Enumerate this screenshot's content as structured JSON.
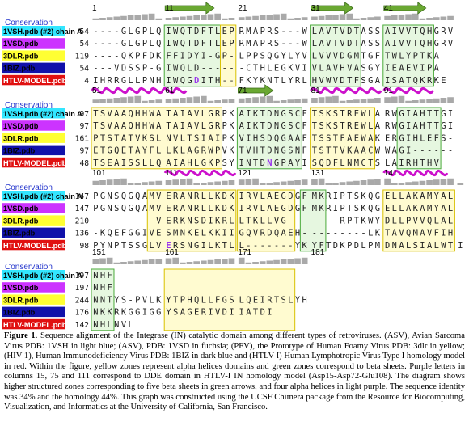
{
  "figure": {
    "conservation_label": "Conservation",
    "blocks": [
      {
        "ticks": [
          {
            "n": "1",
            "col": 0
          },
          {
            "n": "11",
            "col": 10
          },
          {
            "n": "21",
            "col": 20
          },
          {
            "n": "31",
            "col": 30
          },
          {
            "n": "41",
            "col": 40
          }
        ],
        "rows": [
          {
            "name": "1VSH.pdb (#2) chain A",
            "num": "54",
            "seq": "----GLGPLQ IWQTDFTLEP RMAPRS---W LAVTVDTASS AIVVTQHGRV"
          },
          {
            "name": "1VSD.pdb",
            "num": "54",
            "seq": "----GLGPLQ IWQTDFTLEP RMAPRS---W LAVTVDTASS AIVVTQHGRV"
          },
          {
            "name": "3DLR.pdb",
            "num": "119",
            "seq": "----QKPFD KFFIDYI-GP -LPPSQGYLY VLVVVDGMTG FTWLYPTKA"
          },
          {
            "name": "1BIZ.pdb",
            "num": "54",
            "seq": "---VDSSP-G IWQLD------ CTHLEGKV IVLAVHVASG YIEAEVIPA"
          },
          {
            "name": "HTLV-MODEL.pdb",
            "num": "4",
            "seq": "IHRRGLLPNH IWQGDITH-- FKYKNTLYR LHVWVDTFSG AISATQKRKE"
          }
        ]
      },
      {
        "ticks": [
          {
            "n": "51",
            "col": 0
          },
          {
            "n": "61",
            "col": 10
          },
          {
            "n": "71",
            "col": 20
          },
          {
            "n": "81",
            "col": 30
          },
          {
            "n": "91",
            "col": 40
          }
        ],
        "rows": [
          {
            "name": "1VSH.pdb (#2) chain A",
            "num": "97",
            "seq": "TSVAAQHHWA TAIAVLGRPK AIKTDNGSCF TSKSTREWLA RWGIAHTTGI"
          },
          {
            "name": "1VSD.pdb",
            "num": "97",
            "seq": "TSVAAQHHWA TAIAVLGRPK AIKTDNGSCF TSKSTREWLA RWGIAHTTGI"
          },
          {
            "name": "3DLR.pdb",
            "num": "161",
            "seq": "PTSTATVKSL NVLTSIAIPK VIHSDQGAAF TSSTFAEWAK ERGIHLEFS-"
          },
          {
            "name": "1BIZ.pdb",
            "num": "97",
            "seq": "ETGQETAYFL LKLAGRWPVK TVHTDNGSNF TSTTVKAACW WAGI------"
          },
          {
            "name": "HTLV-MODEL.pdb",
            "num": "48",
            "seq": "TSEAISSLL QAIAHLGKPS YINTDNGPAY ISQDFLNMCT SLAIRHTHV"
          }
        ]
      },
      {
        "ticks": [
          {
            "n": "101",
            "col": 0
          },
          {
            "n": "111",
            "col": 10
          },
          {
            "n": "121",
            "col": 20
          },
          {
            "n": "131",
            "col": 30
          },
          {
            "n": "141",
            "col": 40
          }
        ],
        "rows": [
          {
            "name": "1VSH.pdb (#2) chain A",
            "num": "147",
            "seq": "PGNSQGQAMV ERANRLLKDK IRVLAEGDGF MKRIPTSKQG ELLAKAMYAL"
          },
          {
            "name": "1VSD.pdb",
            "num": "147",
            "seq": "PGNSQGQAMV ERANRLLKDK IRVLAEGDGF MKRIPTSKQG ELLAKAMYAL"
          },
          {
            "name": "3DLR.pdb",
            "num": "210",
            "seq": "---------V ERKNSDIKRL LTKLLVG--- ----RPTKWY DLLPVVQLAL"
          },
          {
            "name": "1BIZ.pdb",
            "num": "136",
            "seq": "-KQEFGGIV ESMNKELKKI IGQVRDQAEH ---------LK TAVQMAVFIH"
          },
          {
            "name": "HTLV-MODEL.pdb",
            "num": "98",
            "seq": "PYNPTSSGLV ERSNGILKTL L-------YKY FTDKPDLPMD NALSIALWTI"
          }
        ]
      },
      {
        "ticks": [
          {
            "n": "151",
            "col": 0
          },
          {
            "n": "161",
            "col": 10
          },
          {
            "n": "171",
            "col": 20
          },
          {
            "n": "181",
            "col": 30
          }
        ],
        "rows": [
          {
            "name": "1VSH.pdb (#2) chain A",
            "num": "197",
            "seq": "NHF"
          },
          {
            "name": "1VSD.pdb",
            "num": "197",
            "seq": "NHF"
          },
          {
            "name": "3DLR.pdb",
            "num": "244",
            "seq": "NNTYS-PVLK YTPHQLLFGS LQEIRTSLY H"
          },
          {
            "name": "1BIZ.pdb",
            "num": "176",
            "seq": "NKKRKGGIGG YSAGERIVDI IATDI"
          },
          {
            "name": "HTLV-MODEL.pdb",
            "num": "142",
            "seq": "NHLNVL"
          }
        ]
      }
    ]
  },
  "caption": {
    "label": "Figure 1",
    "text": ". Sequence alignment of the Integrase (IN) catalytic domain among different types of retroviruses. (ASV), Avian Sarcoma Virus PDB: 1VSH in light blue; (ASV), PDB: 1VSD in fuchsia; (PFV), the Prototype of Human Foamy Virus PDB: 3dlr in yellow; (HIV-1), Human Immunodeficiency Virus PDB: 1BIZ in dark blue and (HTLV-I) Human Lymphotropic Virus Type I homology model in red. Within the figure, yellow zones represent alpha helices domains and green zones correspond to beta sheets. Purple letters in columns 15, 75 and 111 correspond to DDE domain in HTLV-I IN homology model (Asp15-Asp72-Glu108). The diagram shows higher structured zones corresponding to five beta sheets in green arrows, and four alpha helices in light purple. The sequence identity was 34% and the homology 44%. This graph was constructed using the UCSF Chimera package from the Resource for Biocomputing, Visualization, and Informatics at the University of California, San Francisco."
  },
  "colors": {
    "row_labels": [
      "#33e6ff",
      "#cc33ff",
      "#ffff33",
      "#1111aa",
      "#e01010"
    ],
    "row_label_text": [
      "#000000",
      "#000000",
      "#000000",
      "#000000",
      "#ffffff"
    ],
    "conservation_text": "#2233cc",
    "conservation_bar": "#a9a9a9",
    "helix_zone_fill": "#fffbd0",
    "helix_zone_stroke": "#d8c000",
    "sheet_zone_fill": "#e6f7e0",
    "sheet_zone_stroke": "#4aaa3a",
    "sheet_arrow": "#6aa832",
    "helix_ribbon": "#cc11cc",
    "residue_text": "#222222",
    "dde_residue": "#9933ee"
  }
}
